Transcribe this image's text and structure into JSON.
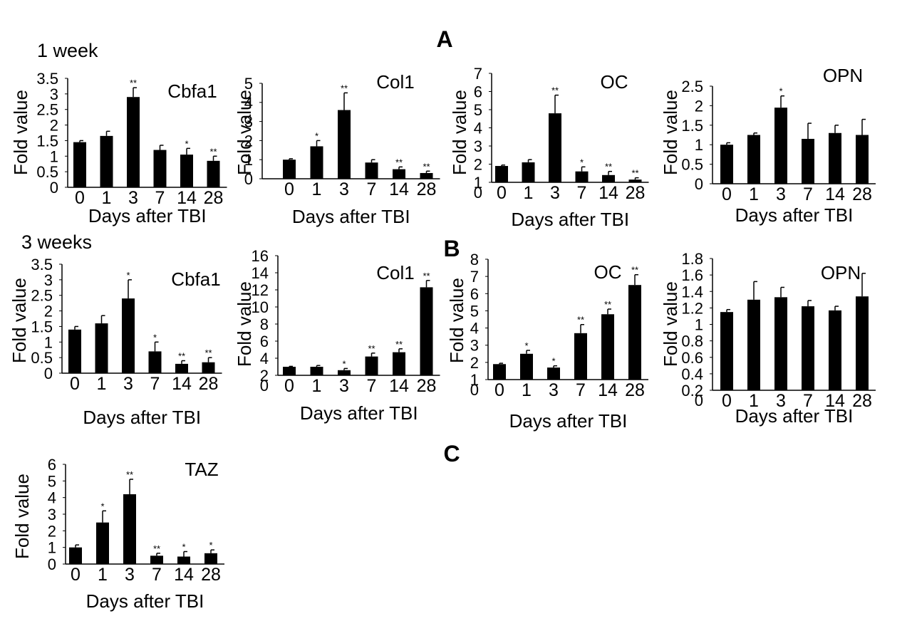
{
  "figure": {
    "panel_letters": [
      "A",
      "B",
      "C"
    ],
    "row_labels": [
      "1 week",
      "3 weeks"
    ],
    "letter_color": "#c8106e"
  },
  "chart_data": [
    {
      "id": "a1",
      "type": "bar",
      "title": "Cbfa1",
      "group": "1 week",
      "xlabel": "Days after TBI",
      "ylabel": "Fold value",
      "categories": [
        "0",
        "1",
        "3",
        "7",
        "14",
        "28"
      ],
      "values": [
        1.45,
        1.65,
        2.9,
        1.2,
        1.05,
        0.85
      ],
      "errors": [
        0.05,
        0.15,
        0.3,
        0.15,
        0.2,
        0.15
      ],
      "significance": [
        "",
        "",
        "**",
        "",
        "*",
        "**"
      ],
      "ylim": [
        0,
        3.5
      ],
      "yticks": [
        0,
        0.5,
        1,
        1.5,
        2,
        2.5,
        3,
        3.5
      ],
      "ytick_labels": [
        "0",
        "0.5",
        "1",
        "1.5",
        "2",
        "2.5",
        "3",
        "3.5"
      ]
    },
    {
      "id": "a2",
      "type": "bar",
      "title": "Col1",
      "group": "1 week",
      "xlabel": "Days after TBI",
      "ylabel": "Fold value",
      "categories": [
        "0",
        "1",
        "3",
        "7",
        "14",
        "28"
      ],
      "values": [
        1,
        1.7,
        3.6,
        0.85,
        0.5,
        0.3
      ],
      "errors": [
        0.05,
        0.3,
        0.9,
        0.15,
        0.12,
        0.1
      ],
      "significance": [
        "",
        "*",
        "**",
        "",
        "**",
        "**"
      ],
      "ylim": [
        0,
        5
      ],
      "yticks": [
        0,
        1,
        2,
        3,
        4,
        5
      ],
      "ytick_labels": [
        "0",
        "1",
        "2",
        "3",
        "4",
        "5"
      ]
    },
    {
      "id": "a3",
      "type": "bar",
      "title": "OC",
      "group": "1 week",
      "xlabel": "Days after TBI",
      "ylabel": "Fold value",
      "categories": [
        "0",
        "1",
        "3",
        "7",
        "14",
        "28"
      ],
      "values": [
        1.9,
        2.1,
        4.8,
        1.6,
        1.4,
        1.15
      ],
      "errors": [
        0.05,
        0.15,
        1.0,
        0.25,
        0.2,
        0.1
      ],
      "significance": [
        "",
        "",
        "**",
        "*",
        "**",
        "**"
      ],
      "ylim": [
        1,
        7
      ],
      "yticks": [
        1,
        2,
        3,
        4,
        5,
        6,
        7
      ],
      "ytick_labels": [
        "1",
        "2",
        "3",
        "4",
        "5",
        "6",
        "7"
      ],
      "axis_origin_label": "0"
    },
    {
      "id": "a4",
      "type": "bar",
      "title": "OPN",
      "group": "1 week",
      "xlabel": "Days after TBI",
      "ylabel": "Fold value",
      "categories": [
        "0",
        "1",
        "3",
        "7",
        "14",
        "28"
      ],
      "values": [
        1.0,
        1.25,
        1.95,
        1.15,
        1.3,
        1.25
      ],
      "errors": [
        0.05,
        0.05,
        0.3,
        0.4,
        0.2,
        0.4
      ],
      "significance": [
        "",
        "",
        "*",
        "",
        "",
        ""
      ],
      "ylim": [
        0,
        2.5
      ],
      "yticks": [
        0,
        0.5,
        1,
        1.5,
        2,
        2.5
      ],
      "ytick_labels": [
        "0",
        "0.5",
        "1",
        "1.5",
        "2",
        "2.5"
      ]
    },
    {
      "id": "b1",
      "type": "bar",
      "title": "Cbfa1",
      "group": "3 weeks",
      "xlabel": "Days after TBI",
      "ylabel": "Fold value",
      "categories": [
        "0",
        "1",
        "3",
        "7",
        "14",
        "28"
      ],
      "values": [
        1.4,
        1.6,
        2.4,
        0.7,
        0.3,
        0.35
      ],
      "errors": [
        0.1,
        0.25,
        0.6,
        0.3,
        0.1,
        0.15
      ],
      "significance": [
        "",
        "",
        "*",
        "*",
        "**",
        "**"
      ],
      "ylim": [
        0,
        3.5
      ],
      "yticks": [
        0,
        0.5,
        1,
        1.5,
        2,
        2.5,
        3,
        3.5
      ],
      "ytick_labels": [
        "0",
        "0.5",
        "1",
        "1.5",
        "2",
        "2.5",
        "3",
        "3.5"
      ]
    },
    {
      "id": "b2",
      "type": "bar",
      "title": "Col1",
      "group": "3 weeks",
      "xlabel": "Days after TBI",
      "ylabel": "Fold value",
      "categories": [
        "0",
        "1",
        "3",
        "7",
        "14",
        "28"
      ],
      "values": [
        3.0,
        3.0,
        2.6,
        4.2,
        4.7,
        12.3
      ],
      "errors": [
        0.05,
        0.15,
        0.2,
        0.4,
        0.4,
        0.8
      ],
      "significance": [
        "",
        "",
        "*",
        "**",
        "**",
        "**"
      ],
      "ylim": [
        2,
        16
      ],
      "yticks": [
        2,
        4,
        6,
        8,
        10,
        12,
        14,
        16
      ],
      "ytick_labels": [
        "2",
        "4",
        "6",
        "8",
        "10",
        "12",
        "14",
        "16"
      ],
      "axis_origin_label": "0"
    },
    {
      "id": "b3",
      "type": "bar",
      "title": "OC",
      "group": "3 weeks",
      "xlabel": "Days after TBI",
      "ylabel": "Fold value",
      "categories": [
        "0",
        "1",
        "3",
        "7",
        "14",
        "28"
      ],
      "values": [
        1.9,
        2.5,
        1.7,
        3.7,
        4.8,
        6.5
      ],
      "errors": [
        0.05,
        0.2,
        0.1,
        0.5,
        0.3,
        0.6
      ],
      "significance": [
        "",
        "*",
        "*",
        "**",
        "**",
        "**"
      ],
      "ylim": [
        1,
        8
      ],
      "yticks": [
        1,
        2,
        3,
        4,
        5,
        6,
        7,
        8
      ],
      "ytick_labels": [
        "1",
        "2",
        "3",
        "4",
        "5",
        "6",
        "7",
        "8"
      ],
      "axis_origin_label": "0"
    },
    {
      "id": "b4",
      "type": "bar",
      "title": "OPN",
      "group": "3 weeks",
      "xlabel": "Days after TBI",
      "ylabel": "Fold value",
      "categories": [
        "0",
        "1",
        "3",
        "7",
        "14",
        "28"
      ],
      "values": [
        1.15,
        1.3,
        1.33,
        1.22,
        1.17,
        1.34
      ],
      "errors": [
        0.03,
        0.22,
        0.12,
        0.07,
        0.05,
        0.28
      ],
      "significance": [
        "",
        "",
        "",
        "",
        "",
        ""
      ],
      "ylim": [
        0.2,
        1.8
      ],
      "yticks": [
        0.2,
        0.4,
        0.6,
        0.8,
        1,
        1.2,
        1.4,
        1.6,
        1.8
      ],
      "ytick_labels": [
        "0.2",
        "0.4",
        "0.6",
        "0.8",
        "1",
        "1.2",
        "1.4",
        "1.6",
        "1.8"
      ],
      "axis_origin_label": "0"
    },
    {
      "id": "c1",
      "type": "bar",
      "title": "TAZ",
      "group": "",
      "xlabel": "Days after TBI",
      "ylabel": "Fold value",
      "categories": [
        "0",
        "1",
        "3",
        "7",
        "14",
        "28"
      ],
      "values": [
        1.0,
        2.5,
        4.2,
        0.5,
        0.45,
        0.65
      ],
      "errors": [
        0.15,
        0.7,
        0.9,
        0.15,
        0.3,
        0.2
      ],
      "significance": [
        "",
        "*",
        "**",
        "**",
        "*",
        "*"
      ],
      "ylim": [
        0,
        6
      ],
      "yticks": [
        0,
        1,
        2,
        3,
        4,
        5,
        6
      ],
      "ytick_labels": [
        "0",
        "1",
        "2",
        "3",
        "4",
        "5",
        "6"
      ]
    }
  ]
}
